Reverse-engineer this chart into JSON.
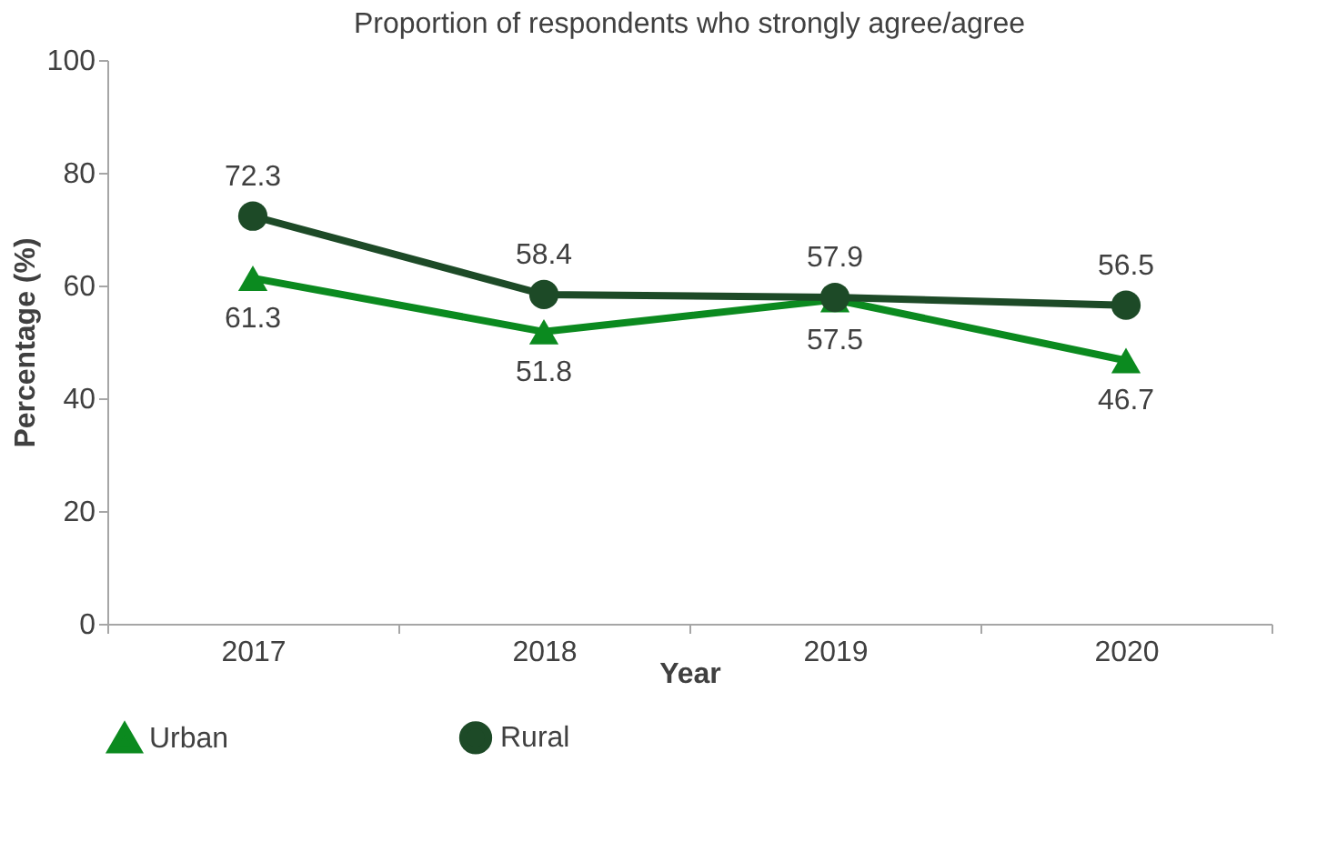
{
  "chart_data": {
    "type": "line",
    "title": "Proportion of respondents who strongly agree/agree",
    "xlabel": "Year",
    "ylabel": "Percentage (%)",
    "categories": [
      "2017",
      "2018",
      "2019",
      "2020"
    ],
    "series": [
      {
        "name": "Urban",
        "color": "#0b8a1f",
        "marker": "triangle",
        "values": [
          61.3,
          51.8,
          57.5,
          46.7
        ]
      },
      {
        "name": "Rural",
        "color": "#1d4a27",
        "marker": "circle",
        "values": [
          72.3,
          58.4,
          57.9,
          56.5
        ]
      }
    ],
    "ylim": [
      0,
      100
    ],
    "yticks": [
      0,
      20,
      40,
      60,
      80,
      100
    ],
    "grid": false,
    "legend": "bottom",
    "data_labels": true,
    "line_style": "solid"
  }
}
